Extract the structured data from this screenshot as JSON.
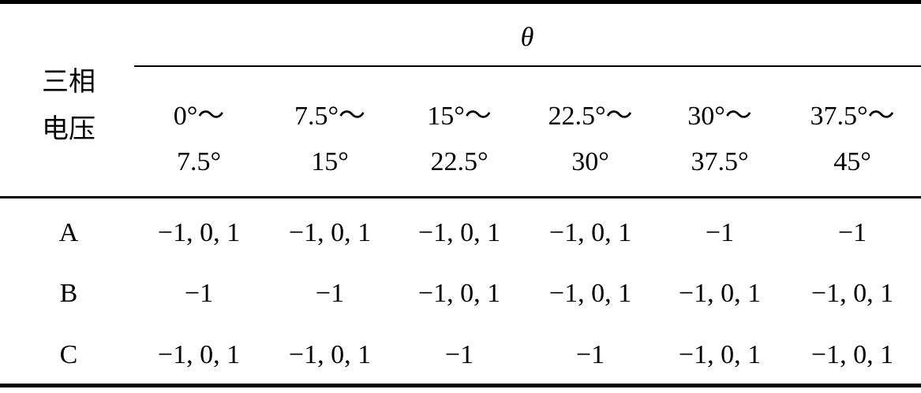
{
  "table": {
    "group_header": "θ",
    "row_header": [
      "三相",
      "电压"
    ],
    "columns": [
      [
        "0°～",
        "7.5°"
      ],
      [
        "7.5°～",
        "15°"
      ],
      [
        "15°～",
        "22.5°"
      ],
      [
        "22.5°～",
        "30°"
      ],
      [
        "30°～",
        "37.5°"
      ],
      [
        "37.5°～",
        "45°"
      ]
    ],
    "rows": [
      [
        "A",
        "−1, 0, 1",
        "−1, 0, 1",
        "−1, 0, 1",
        "−1, 0, 1",
        "−1",
        "−1"
      ],
      [
        "B",
        "−1",
        "−1",
        "−1, 0, 1",
        "−1, 0, 1",
        "−1, 0, 1",
        "−1, 0, 1"
      ],
      [
        "C",
        "−1, 0, 1",
        "−1, 0, 1",
        "−1",
        "−1",
        "−1, 0, 1",
        "−1, 0, 1"
      ]
    ]
  }
}
